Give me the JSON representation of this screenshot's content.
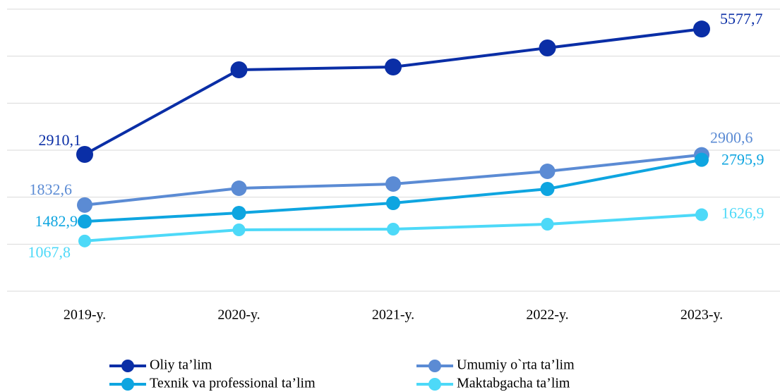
{
  "chart_data": {
    "type": "line",
    "categories": [
      "2019-y.",
      "2020-y.",
      "2021-y.",
      "2022-y.",
      "2023-y."
    ],
    "ylim": [
      0,
      6000
    ],
    "yticks": [
      0,
      1000,
      2000,
      3000,
      4000,
      5000,
      6000
    ],
    "grid": true,
    "legend": "bottom",
    "series": [
      {
        "name": "Oliy ta’lim",
        "color": "#0a2ea6",
        "values": [
          2910.1,
          4710,
          4770,
          5175,
          5577.7
        ],
        "value_labels": [
          "2910,1",
          null,
          null,
          null,
          "5577,7"
        ]
      },
      {
        "name": "Umumiy o`rta ta’lim",
        "color": "#5b8bd4",
        "values": [
          1832.6,
          2190,
          2280,
          2550,
          2900.6
        ],
        "value_labels": [
          "1832,6",
          null,
          null,
          null,
          "2900,6"
        ]
      },
      {
        "name": "Texnik va professional ta’lim",
        "color": "#0ea5e0",
        "values": [
          1482.9,
          1665,
          1875,
          2175,
          2795.9
        ],
        "value_labels": [
          "1482,9",
          null,
          null,
          null,
          "2795,9"
        ]
      },
      {
        "name": "Maktabgacha ta’lim",
        "color": "#4dd9f8",
        "values": [
          1067.8,
          1305,
          1320,
          1425,
          1626.9
        ],
        "value_labels": [
          "1067,8",
          null,
          null,
          null,
          "1626,9"
        ]
      }
    ]
  }
}
